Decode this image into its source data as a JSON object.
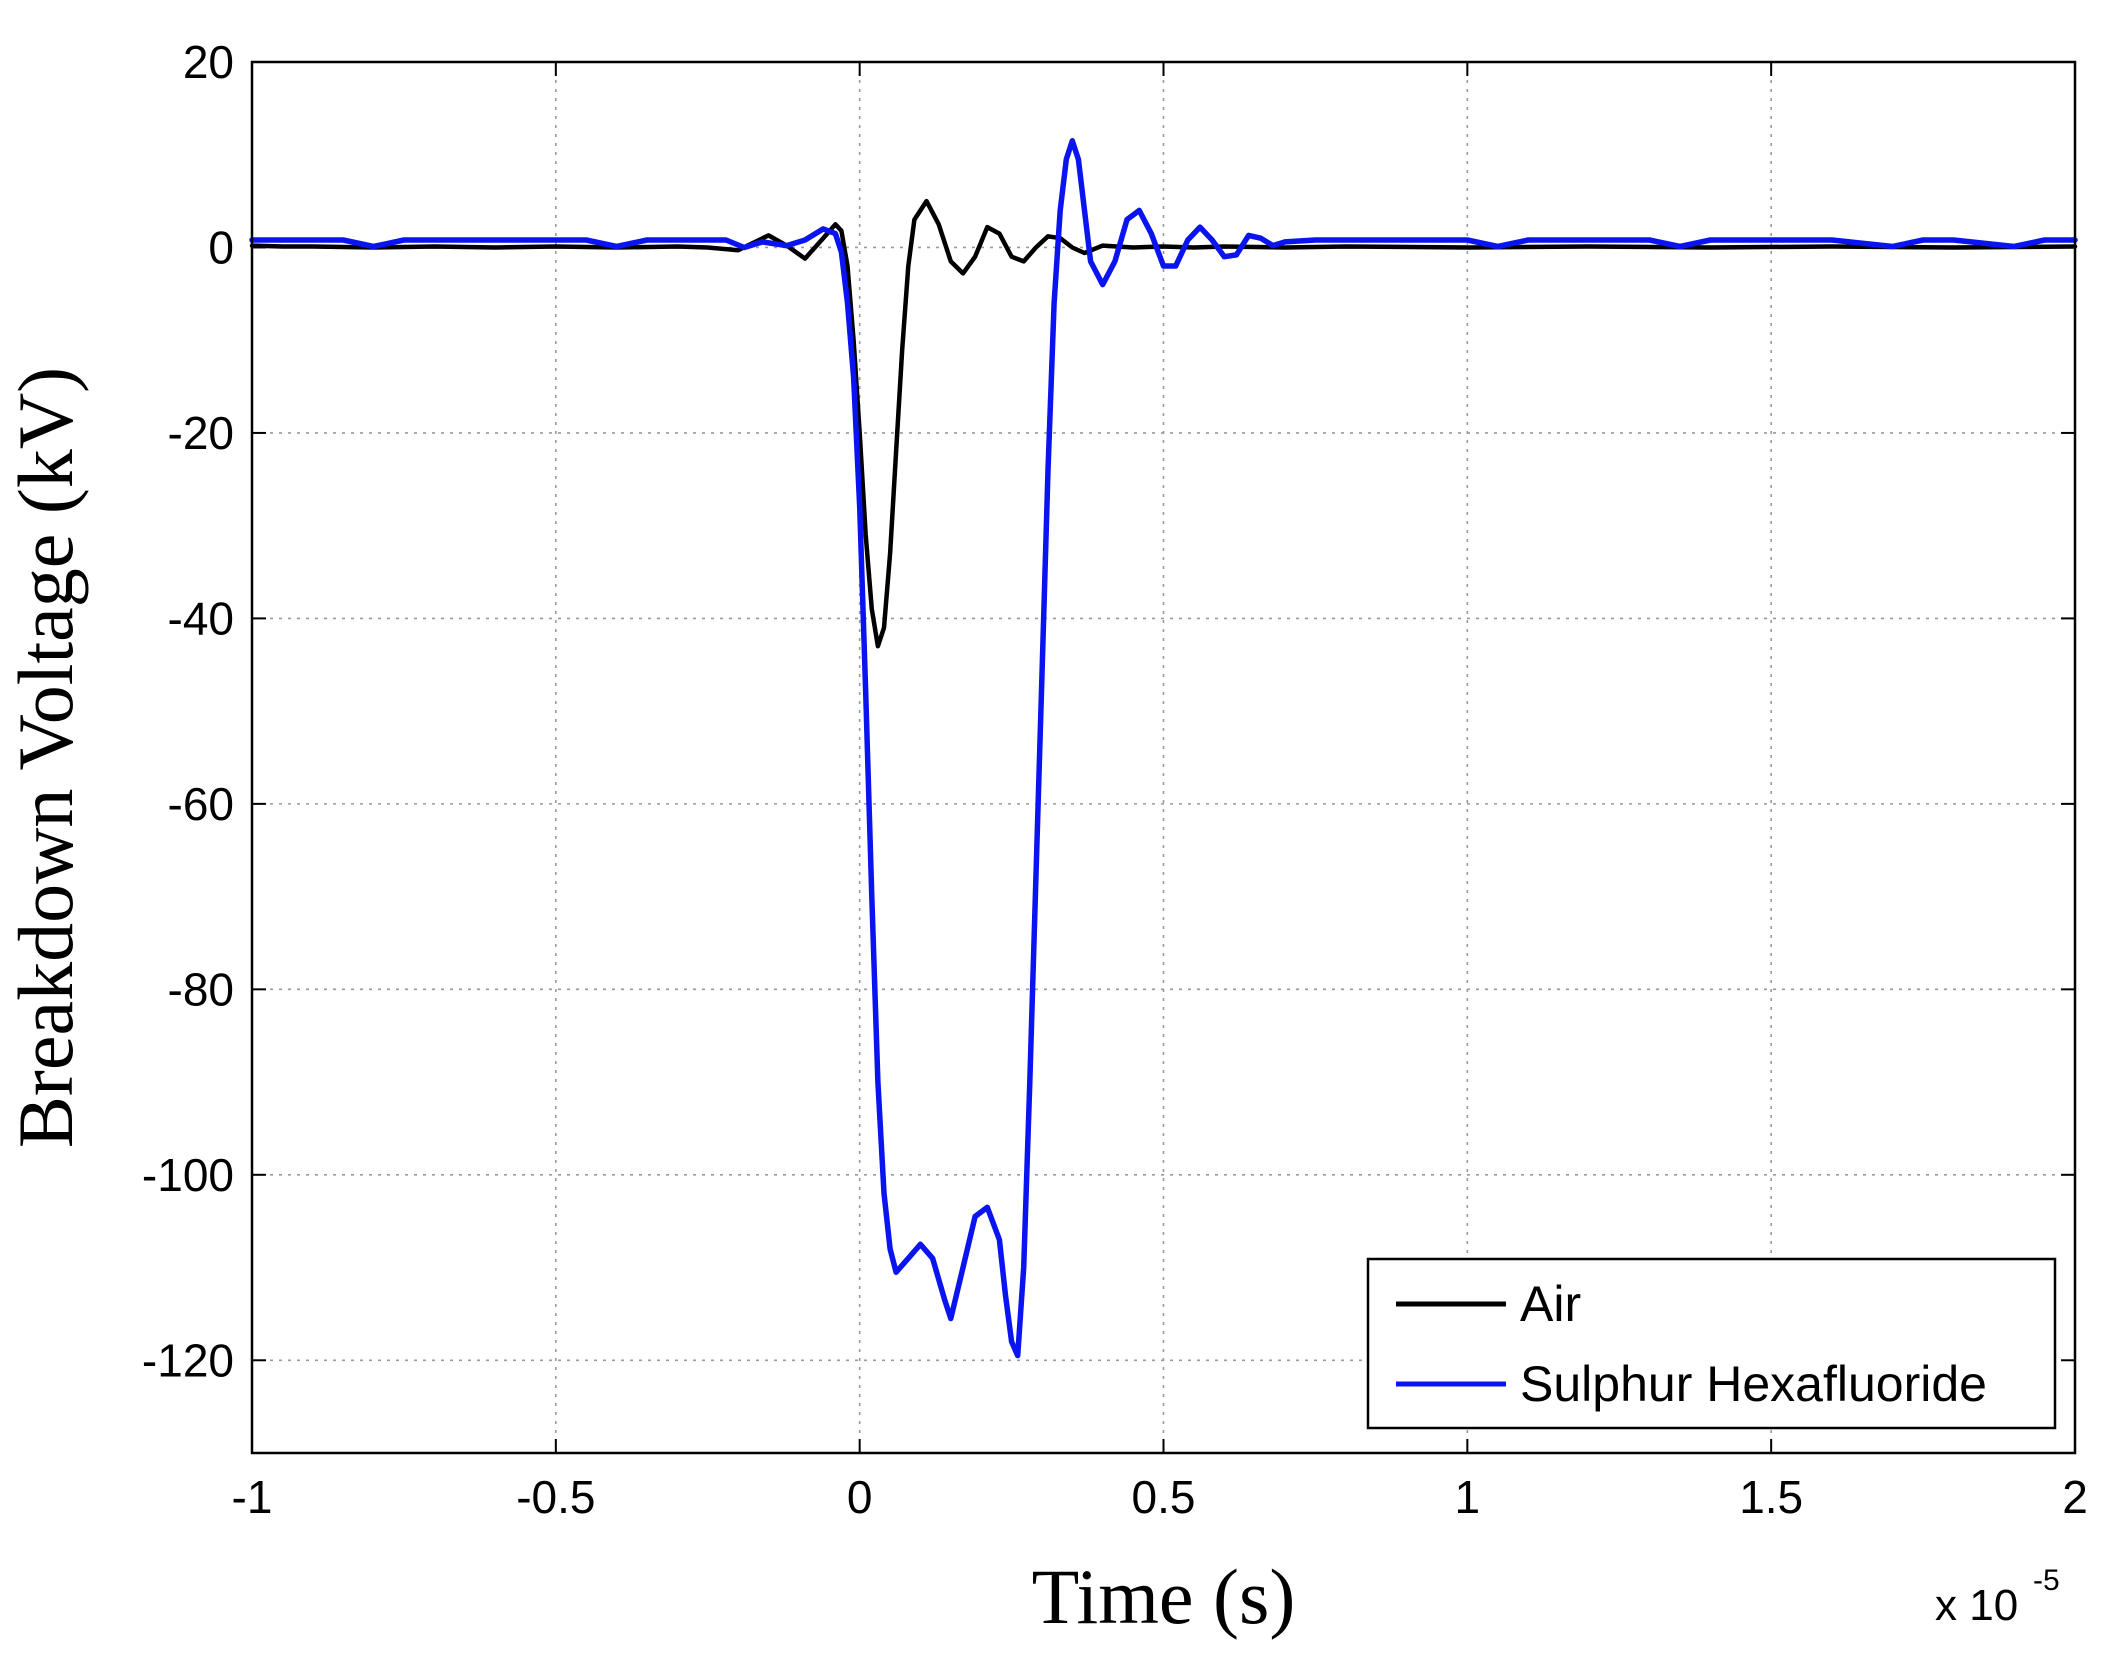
{
  "chart_data": {
    "type": "line",
    "xlabel": "Time (s)",
    "ylabel": "Breakdown Voltage (kV)",
    "x_multiplier": "x 10",
    "x_multiplier_exponent": "-5",
    "xlim": [
      -1,
      2
    ],
    "ylim": [
      -130,
      20
    ],
    "x_ticks": [
      "-1",
      "-0.5",
      "0",
      "0.5",
      "1",
      "1.5",
      "2"
    ],
    "y_ticks": [
      "20",
      "0",
      "-20",
      "-40",
      "-60",
      "-80",
      "-100",
      "-120"
    ],
    "grid": true,
    "legend_position": "bottom-right",
    "series": [
      {
        "name": "Air",
        "color": "#000000",
        "points": [
          [
            -1.0,
            0.2
          ],
          [
            -0.95,
            0.1
          ],
          [
            -0.9,
            0.1
          ],
          [
            -0.8,
            0.0
          ],
          [
            -0.7,
            0.1
          ],
          [
            -0.6,
            0.0
          ],
          [
            -0.5,
            0.1
          ],
          [
            -0.4,
            0.0
          ],
          [
            -0.3,
            0.1
          ],
          [
            -0.25,
            0.0
          ],
          [
            -0.2,
            -0.3
          ],
          [
            -0.15,
            1.3
          ],
          [
            -0.12,
            0.2
          ],
          [
            -0.09,
            -1.2
          ],
          [
            -0.06,
            1.0
          ],
          [
            -0.04,
            2.5
          ],
          [
            -0.03,
            1.8
          ],
          [
            -0.02,
            -2.0
          ],
          [
            -0.01,
            -10.0
          ],
          [
            0.0,
            -20.0
          ],
          [
            0.01,
            -31.0
          ],
          [
            0.02,
            -39.0
          ],
          [
            0.03,
            -43.0
          ],
          [
            0.04,
            -41.0
          ],
          [
            0.05,
            -33.0
          ],
          [
            0.06,
            -22.0
          ],
          [
            0.07,
            -11.0
          ],
          [
            0.08,
            -2.0
          ],
          [
            0.09,
            3.0
          ],
          [
            0.11,
            5.0
          ],
          [
            0.13,
            2.5
          ],
          [
            0.15,
            -1.5
          ],
          [
            0.17,
            -2.8
          ],
          [
            0.19,
            -1.0
          ],
          [
            0.21,
            2.2
          ],
          [
            0.23,
            1.5
          ],
          [
            0.25,
            -1.0
          ],
          [
            0.27,
            -1.5
          ],
          [
            0.29,
            0.0
          ],
          [
            0.31,
            1.2
          ],
          [
            0.33,
            1.0
          ],
          [
            0.35,
            0.0
          ],
          [
            0.37,
            -0.6
          ],
          [
            0.4,
            0.2
          ],
          [
            0.45,
            0.0
          ],
          [
            0.5,
            0.1
          ],
          [
            0.55,
            0.0
          ],
          [
            0.6,
            0.1
          ],
          [
            0.7,
            0.0
          ],
          [
            0.8,
            0.1
          ],
          [
            1.0,
            0.0
          ],
          [
            1.2,
            0.1
          ],
          [
            1.4,
            0.0
          ],
          [
            1.6,
            0.1
          ],
          [
            1.8,
            0.0
          ],
          [
            2.0,
            0.1
          ]
        ]
      },
      {
        "name": "Sulphur Hexafluoride",
        "color": "#0a14f0",
        "points": [
          [
            -1.0,
            0.8
          ],
          [
            -0.95,
            0.8
          ],
          [
            -0.9,
            0.8
          ],
          [
            -0.85,
            0.8
          ],
          [
            -0.8,
            0.1
          ],
          [
            -0.75,
            0.8
          ],
          [
            -0.7,
            0.8
          ],
          [
            -0.6,
            0.8
          ],
          [
            -0.55,
            0.8
          ],
          [
            -0.5,
            0.8
          ],
          [
            -0.45,
            0.8
          ],
          [
            -0.4,
            0.1
          ],
          [
            -0.35,
            0.8
          ],
          [
            -0.3,
            0.8
          ],
          [
            -0.25,
            0.8
          ],
          [
            -0.22,
            0.8
          ],
          [
            -0.19,
            0.0
          ],
          [
            -0.16,
            0.6
          ],
          [
            -0.12,
            0.2
          ],
          [
            -0.09,
            0.8
          ],
          [
            -0.06,
            2.0
          ],
          [
            -0.04,
            1.5
          ],
          [
            -0.03,
            -0.5
          ],
          [
            -0.02,
            -6.0
          ],
          [
            -0.01,
            -14.0
          ],
          [
            0.0,
            -28.0
          ],
          [
            0.01,
            -48.0
          ],
          [
            0.02,
            -70.0
          ],
          [
            0.03,
            -90.0
          ],
          [
            0.04,
            -102.0
          ],
          [
            0.05,
            -108.0
          ],
          [
            0.06,
            -110.5
          ],
          [
            0.08,
            -109.0
          ],
          [
            0.1,
            -107.5
          ],
          [
            0.12,
            -109.0
          ],
          [
            0.14,
            -113.5
          ],
          [
            0.15,
            -115.5
          ],
          [
            0.17,
            -110.0
          ],
          [
            0.19,
            -104.5
          ],
          [
            0.21,
            -103.5
          ],
          [
            0.23,
            -107.0
          ],
          [
            0.24,
            -113.0
          ],
          [
            0.25,
            -118.0
          ],
          [
            0.26,
            -119.5
          ],
          [
            0.27,
            -110.0
          ],
          [
            0.28,
            -90.0
          ],
          [
            0.29,
            -68.0
          ],
          [
            0.3,
            -46.0
          ],
          [
            0.31,
            -24.0
          ],
          [
            0.32,
            -6.0
          ],
          [
            0.33,
            4.0
          ],
          [
            0.34,
            9.5
          ],
          [
            0.35,
            11.5
          ],
          [
            0.36,
            9.5
          ],
          [
            0.37,
            4.0
          ],
          [
            0.38,
            -1.5
          ],
          [
            0.4,
            -4.0
          ],
          [
            0.42,
            -1.5
          ],
          [
            0.44,
            3.0
          ],
          [
            0.46,
            4.0
          ],
          [
            0.48,
            1.5
          ],
          [
            0.5,
            -2.0
          ],
          [
            0.52,
            -2.0
          ],
          [
            0.54,
            0.8
          ],
          [
            0.56,
            2.2
          ],
          [
            0.58,
            0.8
          ],
          [
            0.6,
            -1.0
          ],
          [
            0.62,
            -0.8
          ],
          [
            0.64,
            1.3
          ],
          [
            0.66,
            1.0
          ],
          [
            0.68,
            0.2
          ],
          [
            0.7,
            0.6
          ],
          [
            0.75,
            0.8
          ],
          [
            0.8,
            0.8
          ],
          [
            0.9,
            0.8
          ],
          [
            1.0,
            0.8
          ],
          [
            1.05,
            0.1
          ],
          [
            1.1,
            0.8
          ],
          [
            1.2,
            0.8
          ],
          [
            1.3,
            0.8
          ],
          [
            1.35,
            0.1
          ],
          [
            1.4,
            0.8
          ],
          [
            1.5,
            0.8
          ],
          [
            1.6,
            0.8
          ],
          [
            1.7,
            0.1
          ],
          [
            1.75,
            0.8
          ],
          [
            1.8,
            0.8
          ],
          [
            1.9,
            0.1
          ],
          [
            1.95,
            0.8
          ],
          [
            2.0,
            0.8
          ]
        ]
      }
    ]
  }
}
